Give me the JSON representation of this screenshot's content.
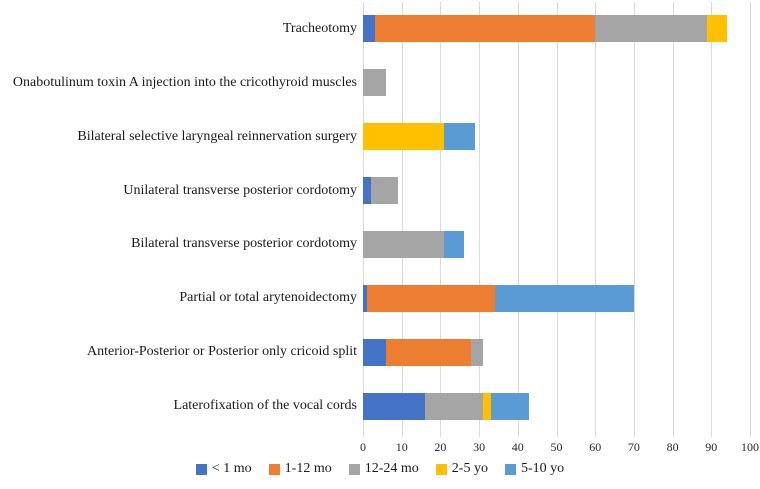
{
  "chart_data": {
    "type": "bar",
    "orientation": "horizontal",
    "stacked": true,
    "title": "",
    "xlabel": "",
    "ylabel": "",
    "grid": true,
    "legend_position": "bottom",
    "categories": [
      "Tracheotomy",
      "Onabotulinum toxin A injection into the cricothyroid muscles",
      "Bilateral selective laryngeal reinnervation surgery",
      "Unilateral transverse posterior cordotomy",
      "Bilateral transverse posterior cordotomy",
      "Partial or total arytenoidectomy",
      "Anterior-Posterior or Posterior only cricoid split",
      "Laterofixation of the vocal cords"
    ],
    "series": [
      {
        "name": "< 1 mo",
        "color": "#4472c4",
        "values": [
          3,
          0,
          0,
          2,
          0,
          1,
          6,
          16
        ]
      },
      {
        "name": "1-12 mo",
        "color": "#ed7d31",
        "values": [
          57,
          0,
          0,
          0,
          0,
          33,
          22,
          0
        ]
      },
      {
        "name": "12-24 mo",
        "color": "#a5a5a5",
        "values": [
          29,
          6,
          0,
          7,
          21,
          0,
          3,
          15
        ]
      },
      {
        "name": "2-5 yo",
        "color": "#ffc000",
        "values": [
          5,
          0,
          21,
          0,
          0,
          0,
          0,
          2
        ]
      },
      {
        "name": "5-10 yo",
        "color": "#5b9bd5",
        "values": [
          0,
          0,
          8,
          0,
          5,
          36,
          0,
          10
        ]
      }
    ],
    "x_axis": {
      "min": 0,
      "max": 100,
      "step": 10,
      "tick_labels": [
        "0",
        "10",
        "20",
        "30",
        "40",
        "50",
        "60",
        "70",
        "80",
        "90",
        "100"
      ]
    }
  },
  "colors": {
    "background": "#ffffff",
    "gridline": "#d9d9d9",
    "text": "#1a1a1a"
  }
}
